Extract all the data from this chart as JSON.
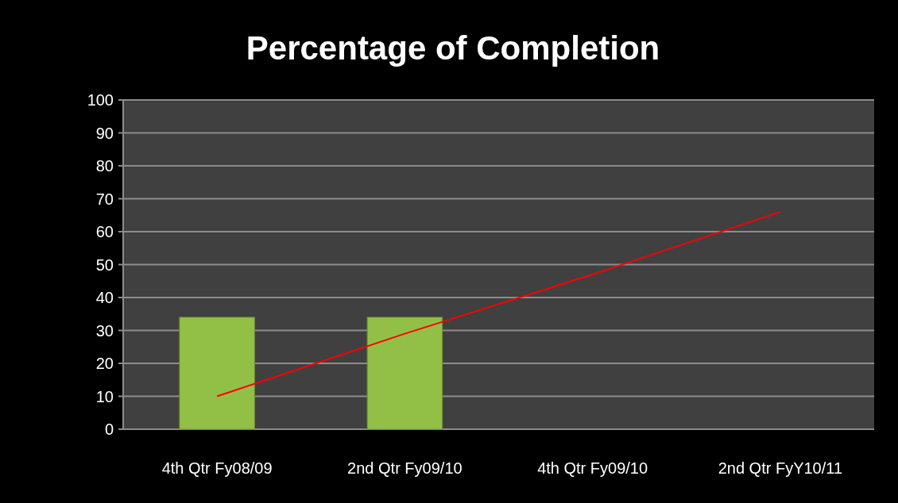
{
  "chart_data": {
    "type": "bar",
    "title": "Percentage of Completion",
    "categories": [
      "4th Qtr Fy08/09",
      "2nd Qtr Fy09/10",
      "4th Qtr Fy09/10",
      "2nd Qtr FyY10/11"
    ],
    "series": [
      {
        "color": "#92c047",
        "values": [
          34,
          34,
          null,
          null
        ]
      },
      {
        "type": "line",
        "color": "#ff0000",
        "values": [
          10,
          29,
          47,
          66
        ]
      }
    ],
    "ylim": [
      0,
      100
    ],
    "yticks": [
      0,
      10,
      20,
      30,
      40,
      50,
      60,
      70,
      80,
      90,
      100
    ],
    "grid": "y"
  }
}
